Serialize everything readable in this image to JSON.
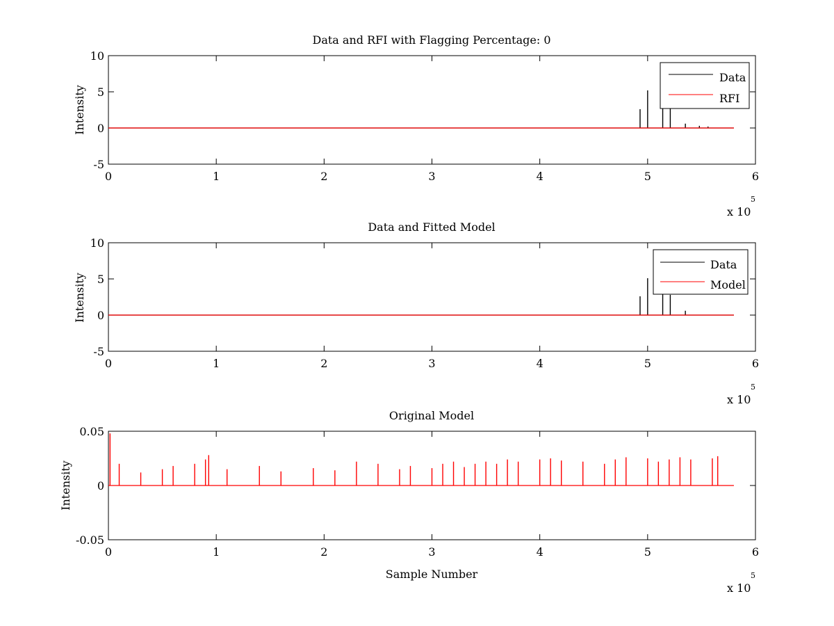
{
  "chart_data": [
    {
      "type": "line",
      "title": "Data and RFI with Flagging Percentage: 0",
      "xlabel": "",
      "ylabel": "Intensity",
      "xlim": [
        0,
        600000
      ],
      "ylim": [
        -5,
        10
      ],
      "xticks": [
        0,
        1,
        2,
        3,
        4,
        5,
        6
      ],
      "yticks": [
        -5,
        0,
        5,
        10
      ],
      "x_multiplier": "x 10",
      "x_multiplier_exp": "5",
      "legend": {
        "position": "top-right",
        "entries": [
          {
            "name": "Data",
            "color": "#000000"
          },
          {
            "name": "RFI",
            "color": "#ff0000"
          }
        ]
      },
      "series": [
        {
          "name": "Data",
          "color": "#000000",
          "baseline": 0.0,
          "spikes": [
            [
              493000,
              2.6
            ],
            [
              500000,
              5.2
            ],
            [
              514000,
              3.0
            ],
            [
              521000,
              2.8
            ],
            [
              535000,
              0.6
            ],
            [
              548000,
              0.3
            ],
            [
              556000,
              0.2
            ]
          ]
        },
        {
          "name": "RFI",
          "color": "#ff0000",
          "baseline": 0.0,
          "spikes": []
        }
      ]
    },
    {
      "type": "line",
      "title": "Data and Fitted Model",
      "xlabel": "",
      "ylabel": "Intensity",
      "xlim": [
        0,
        600000
      ],
      "ylim": [
        -5,
        10
      ],
      "xticks": [
        0,
        1,
        2,
        3,
        4,
        5,
        6
      ],
      "yticks": [
        -5,
        0,
        5,
        10
      ],
      "x_multiplier": "x 10",
      "x_multiplier_exp": "5",
      "legend": {
        "position": "top-right",
        "entries": [
          {
            "name": "Data",
            "color": "#000000"
          },
          {
            "name": "Model",
            "color": "#ff0000"
          }
        ]
      },
      "series": [
        {
          "name": "Data",
          "color": "#000000",
          "baseline": 0.0,
          "spikes": [
            [
              493000,
              2.6
            ],
            [
              500000,
              5.1
            ],
            [
              514000,
              2.9
            ],
            [
              521000,
              2.8
            ],
            [
              535000,
              0.6
            ]
          ]
        },
        {
          "name": "Model",
          "color": "#ff0000",
          "baseline": 0.0,
          "spikes": []
        }
      ]
    },
    {
      "type": "line",
      "title": "Original Model",
      "xlabel": "Sample Number",
      "ylabel": "Intensity",
      "xlim": [
        0,
        600000
      ],
      "ylim": [
        -0.05,
        0.05
      ],
      "xticks": [
        0,
        1,
        2,
        3,
        4,
        5,
        6
      ],
      "yticks": [
        -0.05,
        0,
        0.05
      ],
      "ytick_labels": [
        "-0.05",
        "0",
        "0.05"
      ],
      "x_multiplier": "x 10",
      "x_multiplier_exp": "5",
      "series": [
        {
          "name": "Model",
          "color": "#ff0000",
          "baseline": 0.0,
          "spikes": [
            [
              1500,
              0.048
            ],
            [
              10000,
              0.02
            ],
            [
              30000,
              0.012
            ],
            [
              50000,
              0.015
            ],
            [
              60000,
              0.018
            ],
            [
              80000,
              0.02
            ],
            [
              90000,
              0.024
            ],
            [
              93000,
              0.028
            ],
            [
              110000,
              0.015
            ],
            [
              140000,
              0.018
            ],
            [
              160000,
              0.013
            ],
            [
              190000,
              0.016
            ],
            [
              210000,
              0.014
            ],
            [
              230000,
              0.022
            ],
            [
              250000,
              0.02
            ],
            [
              270000,
              0.015
            ],
            [
              280000,
              0.018
            ],
            [
              300000,
              0.016
            ],
            [
              310000,
              0.02
            ],
            [
              320000,
              0.022
            ],
            [
              330000,
              0.017
            ],
            [
              340000,
              0.02
            ],
            [
              350000,
              0.022
            ],
            [
              360000,
              0.02
            ],
            [
              370000,
              0.024
            ],
            [
              380000,
              0.022
            ],
            [
              400000,
              0.024
            ],
            [
              410000,
              0.025
            ],
            [
              420000,
              0.023
            ],
            [
              440000,
              0.022
            ],
            [
              460000,
              0.02
            ],
            [
              470000,
              0.024
            ],
            [
              480000,
              0.026
            ],
            [
              500000,
              0.025
            ],
            [
              510000,
              0.022
            ],
            [
              520000,
              0.024
            ],
            [
              530000,
              0.026
            ],
            [
              540000,
              0.024
            ],
            [
              560000,
              0.025
            ],
            [
              565000,
              0.027
            ]
          ]
        }
      ]
    }
  ]
}
